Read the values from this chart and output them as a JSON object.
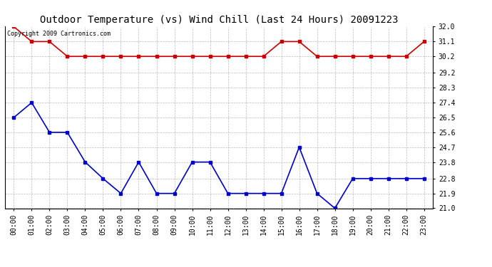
{
  "title": "Outdoor Temperature (vs) Wind Chill (Last 24 Hours) 20091223",
  "copyright_text": "Copyright 2009 Cartronics.com",
  "x_labels": [
    "00:00",
    "01:00",
    "02:00",
    "03:00",
    "04:00",
    "05:00",
    "06:00",
    "07:00",
    "08:00",
    "09:00",
    "10:00",
    "11:00",
    "12:00",
    "13:00",
    "14:00",
    "15:00",
    "16:00",
    "17:00",
    "18:00",
    "19:00",
    "20:00",
    "21:00",
    "22:00",
    "23:00"
  ],
  "temp_data": [
    32.0,
    31.1,
    31.1,
    30.2,
    30.2,
    30.2,
    30.2,
    30.2,
    30.2,
    30.2,
    30.2,
    30.2,
    30.2,
    30.2,
    30.2,
    31.1,
    31.1,
    30.2,
    30.2,
    30.2,
    30.2,
    30.2,
    30.2,
    31.1
  ],
  "wind_chill_data": [
    26.5,
    27.4,
    25.6,
    25.6,
    23.8,
    22.8,
    21.9,
    23.8,
    21.9,
    21.9,
    23.8,
    23.8,
    21.9,
    21.9,
    21.9,
    21.9,
    24.7,
    21.9,
    21.0,
    22.8,
    22.8,
    22.8,
    22.8,
    22.8
  ],
  "temp_color": "#cc0000",
  "wind_chill_color": "#0000cc",
  "bg_color": "#ffffff",
  "plot_bg_color": "#ffffff",
  "grid_color": "#aaaaaa",
  "ylim_min": 21.0,
  "ylim_max": 32.0,
  "yticks": [
    21.0,
    21.9,
    22.8,
    23.8,
    24.7,
    25.6,
    26.5,
    27.4,
    28.3,
    29.2,
    30.2,
    31.1,
    32.0
  ],
  "title_fontsize": 10,
  "tick_fontsize": 7,
  "copyright_fontsize": 6,
  "marker_size": 3,
  "line_width": 1.2
}
